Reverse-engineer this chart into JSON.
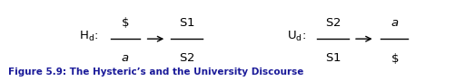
{
  "bg_color": "#ffffff",
  "title_text": "Figure 5.9: The Hysteric’s and the University Discourse",
  "title_color": "#1a1a99",
  "title_fontsize": 7.5,
  "main_fontsize": 9.5,
  "fig_width": 5.02,
  "fig_height": 0.9
}
